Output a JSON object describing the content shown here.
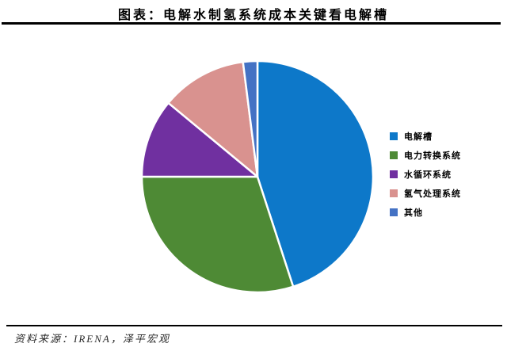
{
  "header": {
    "title": "图表：电解水制氢系统成本关键看电解槽"
  },
  "footer": {
    "source": "资料来源：IRENA，泽平宏观"
  },
  "chart_data": {
    "type": "pie",
    "title": "电解水制氢系统成本关键看电解槽",
    "units": "percent share (estimated from slice angles)",
    "start_angle_deg": 0,
    "direction": "clockwise",
    "legend_position": "right",
    "slices": [
      {
        "label": "电解槽",
        "value": 45,
        "color": "#0D78C9"
      },
      {
        "label": "电力转换系统",
        "value": 30,
        "color": "#4E8A35"
      },
      {
        "label": "水循环系统",
        "value": 11,
        "color": "#7030A0"
      },
      {
        "label": "氢气处理系统",
        "value": 12,
        "color": "#D9928F"
      },
      {
        "label": "其他",
        "value": 2,
        "color": "#4472C4"
      }
    ]
  }
}
